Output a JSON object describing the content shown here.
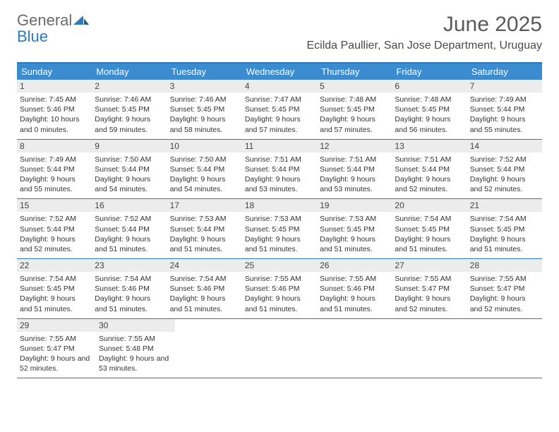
{
  "logo": {
    "general": "General",
    "blue": "Blue"
  },
  "header": {
    "month_title": "June 2025",
    "location": "Ecilda Paullier, San Jose Department, Uruguay"
  },
  "colors": {
    "header_bg": "#3b8bd0",
    "border": "#2a7ac0",
    "daynum_bg": "#ececec"
  },
  "day_names": [
    "Sunday",
    "Monday",
    "Tuesday",
    "Wednesday",
    "Thursday",
    "Friday",
    "Saturday"
  ],
  "weeks": [
    [
      {
        "n": "1",
        "sr": "7:45 AM",
        "ss": "5:46 PM",
        "dl": "10 hours and 0 minutes."
      },
      {
        "n": "2",
        "sr": "7:46 AM",
        "ss": "5:45 PM",
        "dl": "9 hours and 59 minutes."
      },
      {
        "n": "3",
        "sr": "7:46 AM",
        "ss": "5:45 PM",
        "dl": "9 hours and 58 minutes."
      },
      {
        "n": "4",
        "sr": "7:47 AM",
        "ss": "5:45 PM",
        "dl": "9 hours and 57 minutes."
      },
      {
        "n": "5",
        "sr": "7:48 AM",
        "ss": "5:45 PM",
        "dl": "9 hours and 57 minutes."
      },
      {
        "n": "6",
        "sr": "7:48 AM",
        "ss": "5:45 PM",
        "dl": "9 hours and 56 minutes."
      },
      {
        "n": "7",
        "sr": "7:49 AM",
        "ss": "5:44 PM",
        "dl": "9 hours and 55 minutes."
      }
    ],
    [
      {
        "n": "8",
        "sr": "7:49 AM",
        "ss": "5:44 PM",
        "dl": "9 hours and 55 minutes."
      },
      {
        "n": "9",
        "sr": "7:50 AM",
        "ss": "5:44 PM",
        "dl": "9 hours and 54 minutes."
      },
      {
        "n": "10",
        "sr": "7:50 AM",
        "ss": "5:44 PM",
        "dl": "9 hours and 54 minutes."
      },
      {
        "n": "11",
        "sr": "7:51 AM",
        "ss": "5:44 PM",
        "dl": "9 hours and 53 minutes."
      },
      {
        "n": "12",
        "sr": "7:51 AM",
        "ss": "5:44 PM",
        "dl": "9 hours and 53 minutes."
      },
      {
        "n": "13",
        "sr": "7:51 AM",
        "ss": "5:44 PM",
        "dl": "9 hours and 52 minutes."
      },
      {
        "n": "14",
        "sr": "7:52 AM",
        "ss": "5:44 PM",
        "dl": "9 hours and 52 minutes."
      }
    ],
    [
      {
        "n": "15",
        "sr": "7:52 AM",
        "ss": "5:44 PM",
        "dl": "9 hours and 52 minutes."
      },
      {
        "n": "16",
        "sr": "7:52 AM",
        "ss": "5:44 PM",
        "dl": "9 hours and 51 minutes."
      },
      {
        "n": "17",
        "sr": "7:53 AM",
        "ss": "5:44 PM",
        "dl": "9 hours and 51 minutes."
      },
      {
        "n": "18",
        "sr": "7:53 AM",
        "ss": "5:45 PM",
        "dl": "9 hours and 51 minutes."
      },
      {
        "n": "19",
        "sr": "7:53 AM",
        "ss": "5:45 PM",
        "dl": "9 hours and 51 minutes."
      },
      {
        "n": "20",
        "sr": "7:54 AM",
        "ss": "5:45 PM",
        "dl": "9 hours and 51 minutes."
      },
      {
        "n": "21",
        "sr": "7:54 AM",
        "ss": "5:45 PM",
        "dl": "9 hours and 51 minutes."
      }
    ],
    [
      {
        "n": "22",
        "sr": "7:54 AM",
        "ss": "5:45 PM",
        "dl": "9 hours and 51 minutes."
      },
      {
        "n": "23",
        "sr": "7:54 AM",
        "ss": "5:46 PM",
        "dl": "9 hours and 51 minutes."
      },
      {
        "n": "24",
        "sr": "7:54 AM",
        "ss": "5:46 PM",
        "dl": "9 hours and 51 minutes."
      },
      {
        "n": "25",
        "sr": "7:55 AM",
        "ss": "5:46 PM",
        "dl": "9 hours and 51 minutes."
      },
      {
        "n": "26",
        "sr": "7:55 AM",
        "ss": "5:46 PM",
        "dl": "9 hours and 51 minutes."
      },
      {
        "n": "27",
        "sr": "7:55 AM",
        "ss": "5:47 PM",
        "dl": "9 hours and 52 minutes."
      },
      {
        "n": "28",
        "sr": "7:55 AM",
        "ss": "5:47 PM",
        "dl": "9 hours and 52 minutes."
      }
    ],
    [
      {
        "n": "29",
        "sr": "7:55 AM",
        "ss": "5:47 PM",
        "dl": "9 hours and 52 minutes."
      },
      {
        "n": "30",
        "sr": "7:55 AM",
        "ss": "5:48 PM",
        "dl": "9 hours and 53 minutes."
      },
      null,
      null,
      null,
      null,
      null
    ]
  ],
  "labels": {
    "sunrise": "Sunrise: ",
    "sunset": "Sunset: ",
    "daylight": "Daylight: "
  }
}
